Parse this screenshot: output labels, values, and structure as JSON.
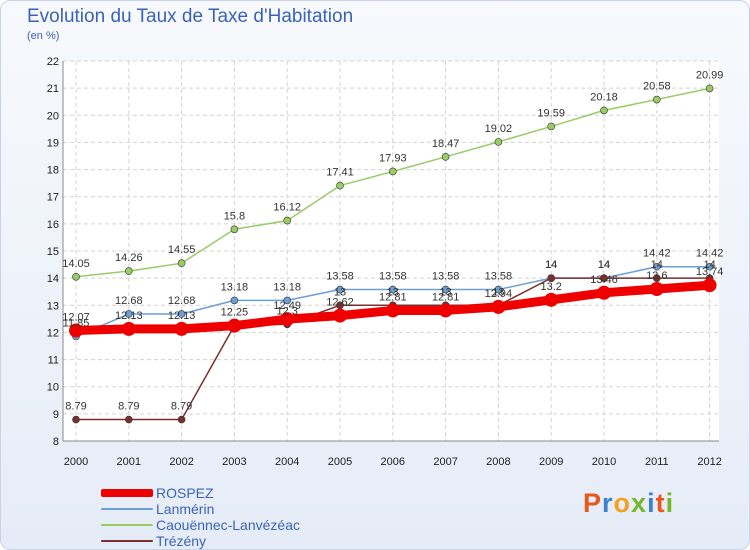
{
  "title": "Evolution du Taux de Taxe d'Habitation",
  "subtitle": "(en %)",
  "brand": "Proxiti",
  "chart_data": {
    "type": "line",
    "x": [
      "2000",
      "2001",
      "2002",
      "2003",
      "2004",
      "2005",
      "2006",
      "2007",
      "2008",
      "2009",
      "2010",
      "2011",
      "2012"
    ],
    "ylim": [
      8,
      22
    ],
    "yticks": [
      8,
      9,
      10,
      11,
      12,
      13,
      14,
      15,
      16,
      17,
      18,
      19,
      20,
      21,
      22
    ],
    "grid": true,
    "legend_position": "bottom-left",
    "series": [
      {
        "name": "ROSPEZ",
        "color": "#ee0000",
        "values": [
          12.07,
          12.13,
          12.13,
          12.25,
          12.49,
          12.62,
          12.81,
          12.81,
          12.94,
          13.2,
          13.46,
          13.6,
          13.74
        ],
        "labels": [
          "12.07",
          "12.13",
          "12.13",
          "12.25",
          "12.49",
          "12.62",
          "12.81",
          "12.81",
          "12.94",
          "13.2",
          "13.46",
          "13.6",
          "13.74"
        ]
      },
      {
        "name": "Lanmérin",
        "color": "#6b9fd6",
        "values": [
          11.85,
          12.68,
          12.68,
          13.18,
          13.18,
          13.58,
          13.58,
          13.58,
          13.58,
          14,
          14,
          14.42,
          14.42
        ],
        "labels": [
          "11.85",
          "12.68",
          "12.68",
          "13.18",
          "13.18",
          "13.58",
          "13.58",
          "13.58",
          "13.58",
          "14",
          "14",
          "14.42",
          "14.42"
        ]
      },
      {
        "name": "Caouënnec-Lanvézéac",
        "color": "#99cc66",
        "values": [
          14.05,
          14.26,
          14.55,
          15.8,
          16.12,
          17.41,
          17.93,
          18.47,
          19.02,
          19.59,
          20.18,
          20.58,
          20.99
        ],
        "labels": [
          "14.05",
          "14.26",
          "14.55",
          "15.8",
          "16.12",
          "17.41",
          "17.93",
          "18.47",
          "19.02",
          "19.59",
          "20.18",
          "20.58",
          "20.99"
        ]
      },
      {
        "name": "Trézény",
        "color": "#7a2f2f",
        "values": [
          8.79,
          8.79,
          8.79,
          12.25,
          12.3,
          13,
          13,
          13,
          13,
          14,
          14,
          14,
          14
        ],
        "labels": [
          "8.79",
          "8.79",
          "8.79",
          "",
          "12.3",
          "13",
          "13",
          "13",
          "13",
          "14",
          "14",
          "14",
          "14"
        ]
      }
    ]
  }
}
